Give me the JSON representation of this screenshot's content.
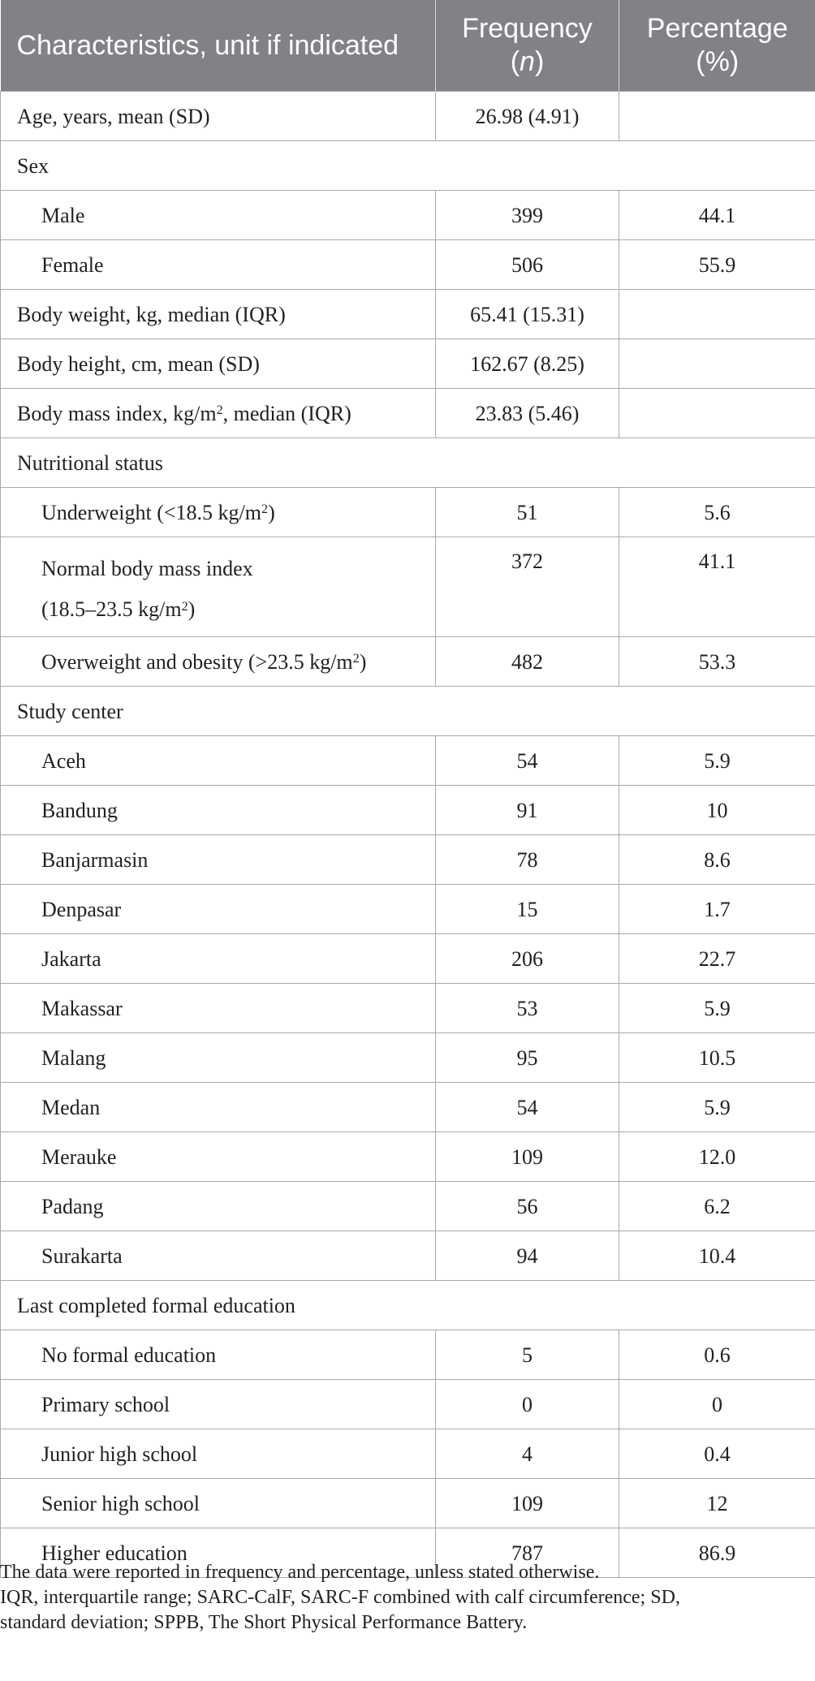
{
  "table": {
    "headers": {
      "characteristics": "Characteristics, unit if indicated",
      "frequency_word": "Frequency",
      "frequency_symbol": "n",
      "percentage_word": "Percentage",
      "percentage_symbol": "(%)"
    },
    "rows": [
      {
        "label": "Age, years, mean (SD)",
        "frequency": "26.98 (4.91)",
        "percentage": ""
      },
      {
        "label": "Sex",
        "frequency": "",
        "percentage": ""
      },
      {
        "label": "Male",
        "frequency": "399",
        "percentage": "44.1"
      },
      {
        "label": "Female",
        "frequency": "506",
        "percentage": "55.9"
      },
      {
        "label": "Body weight, kg, median (IQR)",
        "frequency": "65.41 (15.31)",
        "percentage": ""
      },
      {
        "label": "Body height, cm, mean (SD)",
        "frequency": "162.67 (8.25)",
        "percentage": ""
      },
      {
        "label_pre": "Body mass index, kg/m",
        "label_sup": "2",
        "label_post": ", median (IQR)",
        "frequency": "23.83 (5.46)",
        "percentage": ""
      },
      {
        "label": "Nutritional status",
        "frequency": "",
        "percentage": ""
      },
      {
        "label_pre": "Underweight (<18.5 kg/m",
        "label_sup": "2",
        "label_post": ")",
        "frequency": "51",
        "percentage": "5.6"
      },
      {
        "label_line1": "Normal body mass index",
        "label_pre": "(18.5–23.5 kg/m",
        "label_sup": "2",
        "label_post": ")",
        "frequency": "372",
        "percentage": "41.1"
      },
      {
        "label_pre": "Overweight and obesity (>23.5 kg/m",
        "label_sup": "2",
        "label_post": ")",
        "frequency": "482",
        "percentage": "53.3"
      },
      {
        "label": "Study center",
        "frequency": "",
        "percentage": ""
      },
      {
        "label": "Aceh",
        "frequency": "54",
        "percentage": "5.9"
      },
      {
        "label": "Bandung",
        "frequency": "91",
        "percentage": "10"
      },
      {
        "label": "Banjarmasin",
        "frequency": "78",
        "percentage": "8.6"
      },
      {
        "label": "Denpasar",
        "frequency": "15",
        "percentage": "1.7"
      },
      {
        "label": "Jakarta",
        "frequency": "206",
        "percentage": "22.7"
      },
      {
        "label": "Makassar",
        "frequency": "53",
        "percentage": "5.9"
      },
      {
        "label": "Malang",
        "frequency": "95",
        "percentage": "10.5"
      },
      {
        "label": "Medan",
        "frequency": "54",
        "percentage": "5.9"
      },
      {
        "label": "Merauke",
        "frequency": "109",
        "percentage": "12.0"
      },
      {
        "label": "Padang",
        "frequency": "56",
        "percentage": "6.2"
      },
      {
        "label": "Surakarta",
        "frequency": "94",
        "percentage": "10.4"
      },
      {
        "label": "Last completed formal education",
        "frequency": "",
        "percentage": ""
      },
      {
        "label": "No formal education",
        "frequency": "5",
        "percentage": "0.6"
      },
      {
        "label": "Primary school",
        "frequency": "0",
        "percentage": "0"
      },
      {
        "label": "Junior high school",
        "frequency": "4",
        "percentage": "0.4"
      },
      {
        "label": "Senior high school",
        "frequency": "109",
        "percentage": "12"
      },
      {
        "label": "Higher education",
        "frequency": "787",
        "percentage": "86.9"
      }
    ]
  },
  "footnotes": {
    "line1": "The data were reported in frequency and percentage, unless stated otherwise.",
    "line2": "IQR, interquartile range; SARC-CalF, SARC-F combined with calf circumference; SD,",
    "line3": "standard deviation; SPPB, The Short Physical Performance Battery."
  },
  "colors": {
    "header_background": "#808285",
    "header_text": "#ffffff",
    "border": "#a7a9ac",
    "body_text": "#231f20"
  }
}
